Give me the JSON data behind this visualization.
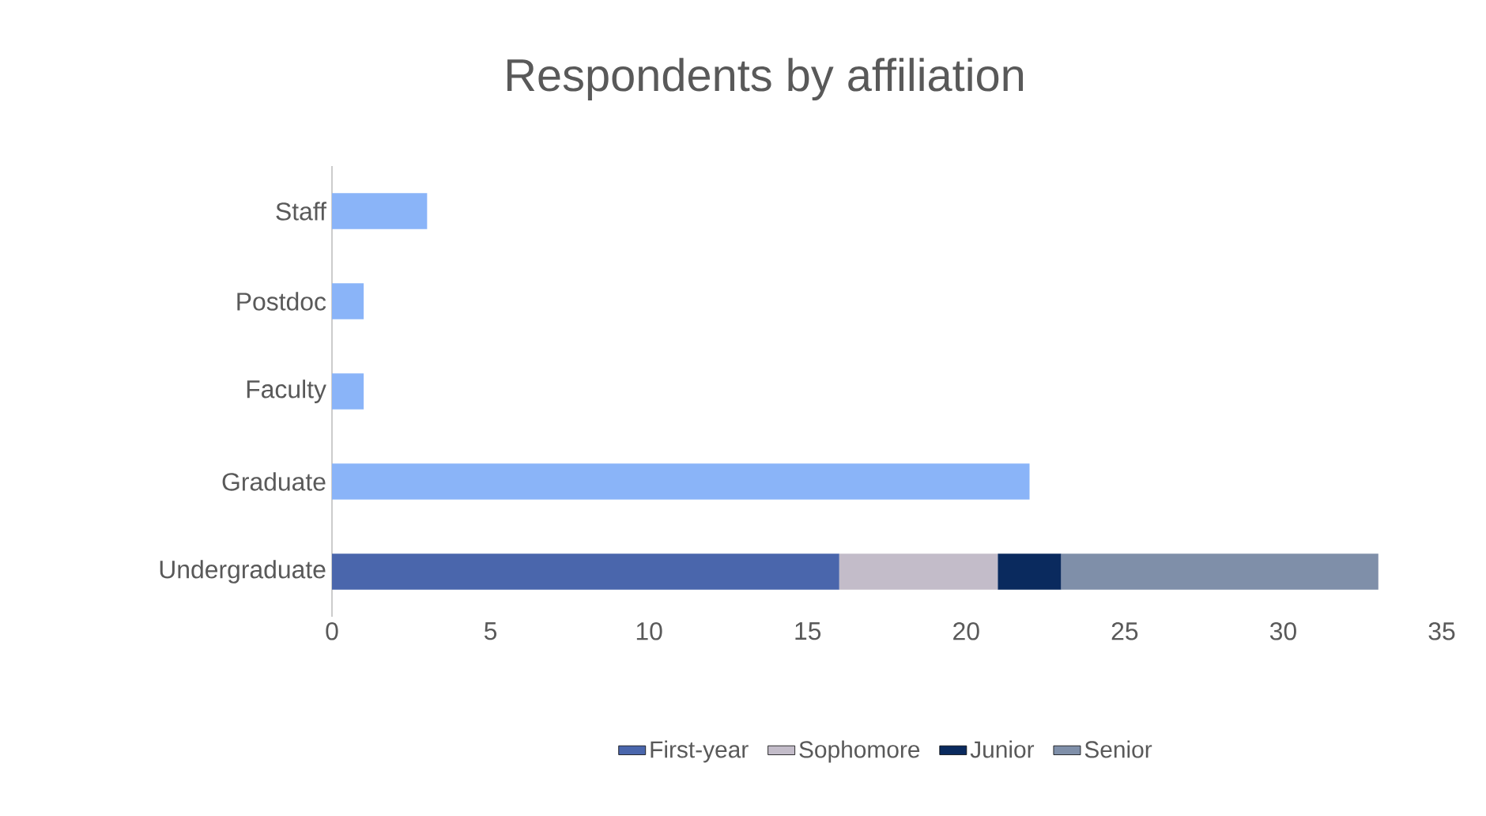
{
  "chart_data": {
    "type": "bar",
    "title": "Respondents by affiliation",
    "orientation": "horizontal",
    "stacked": true,
    "legend": "bottom",
    "categories": [
      "Staff",
      "Postdoc",
      "Faculty",
      "Graduate",
      "Undergraduate"
    ],
    "series": [
      {
        "color": "#8ab4f8",
        "values": [
          3,
          1,
          1,
          22,
          null
        ]
      },
      {
        "name": "First-year",
        "color": "#4a66ac",
        "values": [
          null,
          null,
          null,
          null,
          16
        ]
      },
      {
        "name": "Sophomore",
        "color": "#c3bcc9",
        "values": [
          null,
          null,
          null,
          null,
          5
        ]
      },
      {
        "name": "Junior",
        "color": "#0a2a5e",
        "values": [
          null,
          null,
          null,
          null,
          2
        ]
      },
      {
        "name": "Senior",
        "color": "#7f8fa9",
        "values": [
          null,
          null,
          null,
          null,
          10
        ]
      }
    ],
    "xlim": [
      0,
      35
    ],
    "xticks": [
      0,
      5,
      10,
      15,
      20,
      25,
      30,
      35
    ]
  }
}
